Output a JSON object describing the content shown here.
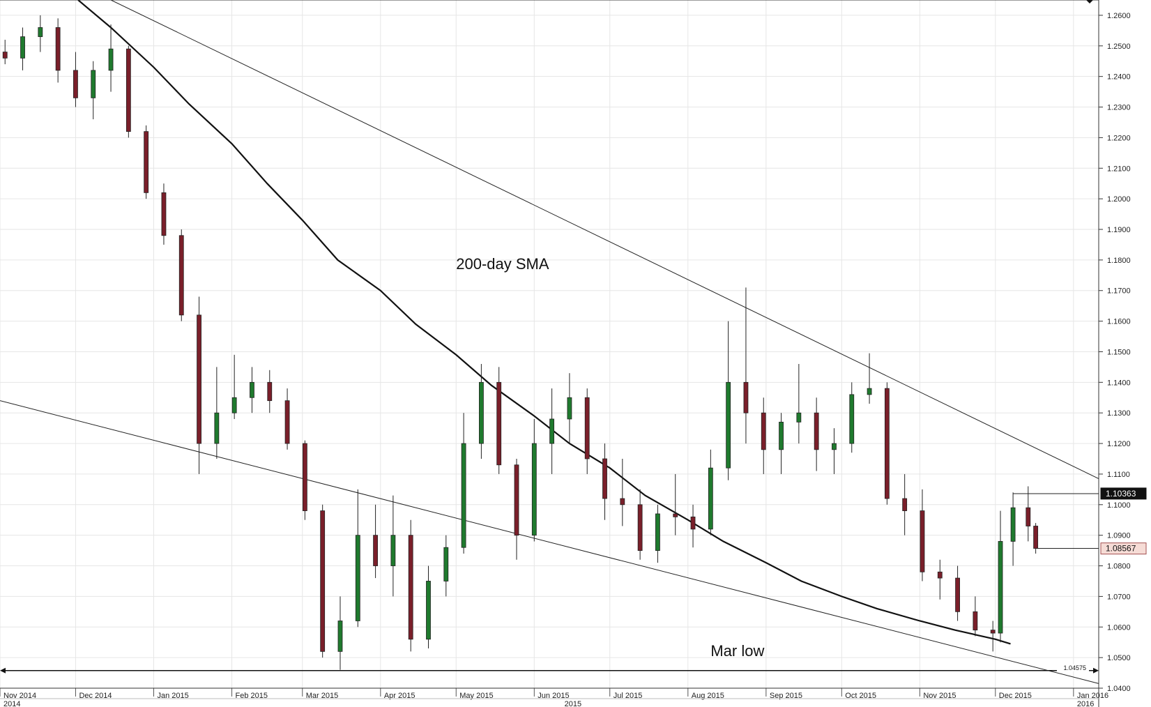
{
  "chart_data": {
    "type": "candlestick",
    "y_axis": {
      "min": 1.04,
      "max": 1.265,
      "ticks": [
        "1.2600",
        "1.2500",
        "1.2400",
        "1.2300",
        "1.2200",
        "1.2100",
        "1.2000",
        "1.1900",
        "1.1800",
        "1.1700",
        "1.1600",
        "1.1500",
        "1.1400",
        "1.1300",
        "1.1200",
        "1.1100",
        "1.1000",
        "1.0900",
        "1.0800",
        "1.0700",
        "1.0600",
        "1.0500",
        "1.0400"
      ]
    },
    "x_axis": {
      "start": "2014-11-01",
      "end": "2016-01-11",
      "month_labels": [
        {
          "date": "2014-11-01",
          "label": "Nov 2014"
        },
        {
          "date": "2014-12-01",
          "label": "Dec 2014"
        },
        {
          "date": "2015-01-01",
          "label": "Jan 2015"
        },
        {
          "date": "2015-02-01",
          "label": "Feb 2015"
        },
        {
          "date": "2015-03-01",
          "label": "Mar 2015"
        },
        {
          "date": "2015-04-01",
          "label": "Apr 2015"
        },
        {
          "date": "2015-05-01",
          "label": "May 2015"
        },
        {
          "date": "2015-06-01",
          "label": "Jun 2015"
        },
        {
          "date": "2015-07-01",
          "label": "Jul 2015"
        },
        {
          "date": "2015-08-01",
          "label": "Aug 2015"
        },
        {
          "date": "2015-09-01",
          "label": "Sep 2015"
        },
        {
          "date": "2015-10-01",
          "label": "Oct 2015"
        },
        {
          "date": "2015-11-01",
          "label": "Nov 2015"
        },
        {
          "date": "2015-12-01",
          "label": "Dec 2015"
        },
        {
          "date": "2016-01-01",
          "label": "Jan 2016"
        }
      ],
      "year_labels": [
        {
          "date": "2014-11-01",
          "label": "2014"
        },
        {
          "date": "2015-06-15",
          "label": "2015"
        },
        {
          "date": "2016-01-01",
          "label": "2016"
        }
      ]
    },
    "series": [
      {
        "name": "200-day SMA",
        "type": "line",
        "points": [
          [
            "2014-12-02",
            1.265
          ],
          [
            "2014-12-15",
            1.256
          ],
          [
            "2015-01-01",
            1.243
          ],
          [
            "2015-01-15",
            1.231
          ],
          [
            "2015-02-01",
            1.218
          ],
          [
            "2015-02-15",
            1.205
          ],
          [
            "2015-03-01",
            1.193
          ],
          [
            "2015-03-15",
            1.18
          ],
          [
            "2015-04-01",
            1.17
          ],
          [
            "2015-04-15",
            1.159
          ],
          [
            "2015-05-01",
            1.149
          ],
          [
            "2015-05-15",
            1.139
          ],
          [
            "2015-06-01",
            1.129
          ],
          [
            "2015-06-15",
            1.12
          ],
          [
            "2015-07-01",
            1.112
          ],
          [
            "2015-07-15",
            1.103
          ],
          [
            "2015-08-01",
            1.095
          ],
          [
            "2015-08-15",
            1.088
          ],
          [
            "2015-09-01",
            1.081
          ],
          [
            "2015-09-15",
            1.075
          ],
          [
            "2015-10-01",
            1.07
          ],
          [
            "2015-10-15",
            1.066
          ],
          [
            "2015-11-01",
            1.062
          ],
          [
            "2015-11-15",
            1.059
          ],
          [
            "2015-12-01",
            1.056
          ],
          [
            "2015-12-07",
            1.0545
          ]
        ]
      }
    ],
    "candles_ohlc": [
      [
        "2014-11-03",
        1.248,
        1.252,
        1.244,
        1.246
      ],
      [
        "2014-11-10",
        1.246,
        1.256,
        1.242,
        1.253
      ],
      [
        "2014-11-17",
        1.253,
        1.26,
        1.248,
        1.256
      ],
      [
        "2014-11-24",
        1.256,
        1.259,
        1.238,
        1.242
      ],
      [
        "2014-12-01",
        1.242,
        1.248,
        1.23,
        1.233
      ],
      [
        "2014-12-08",
        1.233,
        1.245,
        1.226,
        1.242
      ],
      [
        "2014-12-15",
        1.242,
        1.257,
        1.235,
        1.249
      ],
      [
        "2014-12-22",
        1.249,
        1.25,
        1.22,
        1.222
      ],
      [
        "2014-12-29",
        1.222,
        1.224,
        1.2,
        1.202
      ],
      [
        "2015-01-05",
        1.202,
        1.205,
        1.185,
        1.188
      ],
      [
        "2015-01-12",
        1.188,
        1.19,
        1.16,
        1.162
      ],
      [
        "2015-01-19",
        1.162,
        1.168,
        1.11,
        1.12
      ],
      [
        "2015-01-26",
        1.12,
        1.145,
        1.115,
        1.13
      ],
      [
        "2015-02-02",
        1.13,
        1.149,
        1.128,
        1.135
      ],
      [
        "2015-02-09",
        1.135,
        1.145,
        1.13,
        1.14
      ],
      [
        "2015-02-16",
        1.14,
        1.144,
        1.13,
        1.134
      ],
      [
        "2015-02-23",
        1.134,
        1.138,
        1.118,
        1.12
      ],
      [
        "2015-03-02",
        1.12,
        1.121,
        1.095,
        1.098
      ],
      [
        "2015-03-09",
        1.098,
        1.1,
        1.05,
        1.052
      ],
      [
        "2015-03-16",
        1.052,
        1.07,
        1.046,
        1.062
      ],
      [
        "2015-03-23",
        1.062,
        1.105,
        1.06,
        1.09
      ],
      [
        "2015-03-30",
        1.09,
        1.1,
        1.076,
        1.08
      ],
      [
        "2015-04-06",
        1.08,
        1.103,
        1.07,
        1.09
      ],
      [
        "2015-04-13",
        1.09,
        1.095,
        1.052,
        1.056
      ],
      [
        "2015-04-20",
        1.056,
        1.08,
        1.053,
        1.075
      ],
      [
        "2015-04-27",
        1.075,
        1.09,
        1.07,
        1.086
      ],
      [
        "2015-05-04",
        1.086,
        1.13,
        1.084,
        1.12
      ],
      [
        "2015-05-11",
        1.12,
        1.146,
        1.115,
        1.14
      ],
      [
        "2015-05-18",
        1.14,
        1.145,
        1.11,
        1.113
      ],
      [
        "2015-05-25",
        1.113,
        1.115,
        1.082,
        1.09
      ],
      [
        "2015-06-01",
        1.09,
        1.128,
        1.088,
        1.12
      ],
      [
        "2015-06-08",
        1.12,
        1.138,
        1.11,
        1.128
      ],
      [
        "2015-06-15",
        1.128,
        1.143,
        1.12,
        1.135
      ],
      [
        "2015-06-22",
        1.135,
        1.138,
        1.11,
        1.115
      ],
      [
        "2015-06-29",
        1.115,
        1.12,
        1.095,
        1.102
      ],
      [
        "2015-07-06",
        1.102,
        1.115,
        1.093,
        1.1
      ],
      [
        "2015-07-13",
        1.1,
        1.105,
        1.082,
        1.085
      ],
      [
        "2015-07-20",
        1.085,
        1.1,
        1.081,
        1.097
      ],
      [
        "2015-07-27",
        1.097,
        1.11,
        1.09,
        1.096
      ],
      [
        "2015-08-03",
        1.096,
        1.1,
        1.086,
        1.092
      ],
      [
        "2015-08-10",
        1.092,
        1.118,
        1.09,
        1.112
      ],
      [
        "2015-08-17",
        1.112,
        1.16,
        1.108,
        1.14
      ],
      [
        "2015-08-24",
        1.14,
        1.171,
        1.12,
        1.13
      ],
      [
        "2015-08-31",
        1.13,
        1.135,
        1.11,
        1.118
      ],
      [
        "2015-09-07",
        1.118,
        1.13,
        1.11,
        1.127
      ],
      [
        "2015-09-14",
        1.127,
        1.146,
        1.12,
        1.13
      ],
      [
        "2015-09-21",
        1.13,
        1.135,
        1.111,
        1.118
      ],
      [
        "2015-09-28",
        1.118,
        1.125,
        1.11,
        1.12
      ],
      [
        "2015-10-05",
        1.12,
        1.14,
        1.117,
        1.136
      ],
      [
        "2015-10-12",
        1.136,
        1.1495,
        1.133,
        1.138
      ],
      [
        "2015-10-19",
        1.138,
        1.14,
        1.1,
        1.102
      ],
      [
        "2015-10-26",
        1.102,
        1.11,
        1.09,
        1.098
      ],
      [
        "2015-11-02",
        1.098,
        1.105,
        1.075,
        1.078
      ],
      [
        "2015-11-09",
        1.078,
        1.082,
        1.069,
        1.076
      ],
      [
        "2015-11-16",
        1.076,
        1.08,
        1.062,
        1.065
      ],
      [
        "2015-11-23",
        1.065,
        1.07,
        1.057,
        1.059
      ],
      [
        "2015-11-30",
        1.059,
        1.062,
        1.052,
        1.058
      ],
      [
        "2015-12-03",
        1.058,
        1.098,
        1.055,
        1.088
      ],
      [
        "2015-12-08",
        1.088,
        1.104,
        1.08,
        1.099
      ],
      [
        "2015-12-14",
        1.099,
        1.106,
        1.088,
        1.093
      ],
      [
        "2015-12-17",
        1.093,
        1.094,
        1.084,
        1.0857
      ]
    ],
    "trendlines": [
      {
        "from": [
          "2014-12-15",
          1.265
        ],
        "to": [
          "2016-01-11",
          1.1085
        ]
      },
      {
        "from": [
          "2014-11-01",
          1.134
        ],
        "to": [
          "2016-01-11",
          1.0415
        ]
      },
      {
        "from": [
          "2015-12-17",
          1.0857
        ],
        "to": [
          "2016-01-11",
          1.0857
        ]
      },
      {
        "from": [
          "2015-12-08",
          1.1036
        ],
        "to": [
          "2016-01-11",
          1.1036
        ]
      }
    ],
    "reference_line": {
      "value": 1.04575,
      "label": "1.04575"
    },
    "price_tags": [
      {
        "value": 1.10363,
        "label": "1.10363",
        "style": "dark"
      },
      {
        "value": 1.08567,
        "label": "1.08567",
        "style": "light"
      }
    ],
    "annotations": [
      {
        "text": "200-day SMA",
        "at": [
          "2015-05-01",
          1.177
        ]
      },
      {
        "text": "Mar low",
        "at": [
          "2015-08-10",
          1.0505
        ]
      }
    ]
  }
}
